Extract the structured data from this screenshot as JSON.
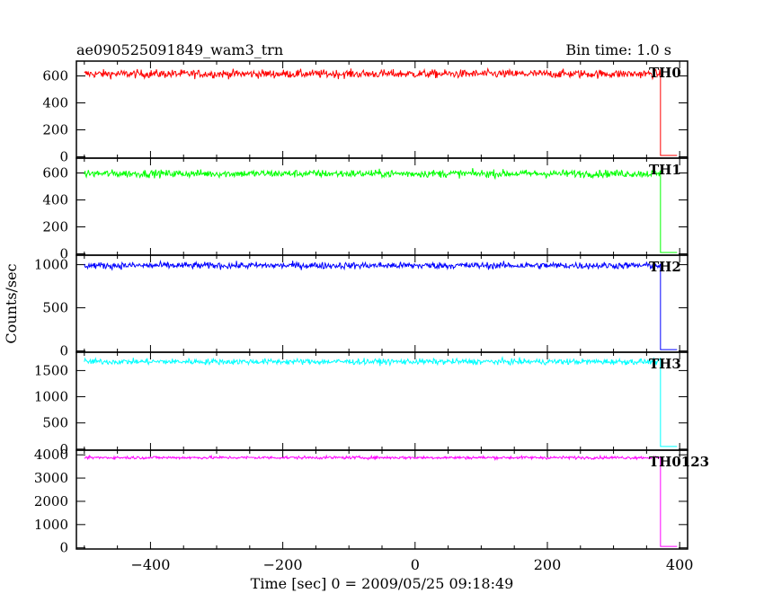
{
  "header": {
    "title": "ae090525091849_wam3_trn",
    "bin_time": "Bin time: 1.0 s"
  },
  "chart_data": {
    "type": "line",
    "title": "ae090525091849_wam3_trn",
    "subtitle": "Bin time: 1.0 s",
    "xlabel": "Time [sec] 0 = 2009/05/25 09:18:49",
    "ylabel": "Counts/sec",
    "xlim": [
      -512,
      412
    ],
    "x_ticks": [
      -400,
      -200,
      0,
      200,
      400
    ],
    "x_range_data": [
      -500,
      400
    ],
    "drop_time": 371,
    "grid": false,
    "legend": "none",
    "panels": [
      {
        "name": "TH0",
        "color": "#ff0000",
        "ylim": [
          -10,
          710
        ],
        "y_ticks": [
          0,
          200,
          400,
          600
        ],
        "mean": 615,
        "noise": 22,
        "after_drop": 10
      },
      {
        "name": "TH1",
        "color": "#00ff00",
        "ylim": [
          -10,
          710
        ],
        "y_ticks": [
          0,
          200,
          400,
          600
        ],
        "mean": 595,
        "noise": 20,
        "after_drop": 10
      },
      {
        "name": "TH2",
        "color": "#0000ff",
        "ylim": [
          -15,
          1110
        ],
        "y_ticks": [
          0,
          500,
          1000
        ],
        "mean": 990,
        "noise": 28,
        "after_drop": 15
      },
      {
        "name": "TH3",
        "color": "#00ffff",
        "ylim": [
          -20,
          1850
        ],
        "y_ticks": [
          0,
          500,
          1000,
          1500
        ],
        "mean": 1670,
        "noise": 40,
        "after_drop": 50
      },
      {
        "name": "TH0123",
        "color": "#ff00ff",
        "ylim": [
          -50,
          4200
        ],
        "y_ticks": [
          0,
          1000,
          2000,
          3000,
          4000
        ],
        "mean": 3880,
        "noise": 45,
        "after_drop": 60
      }
    ]
  }
}
